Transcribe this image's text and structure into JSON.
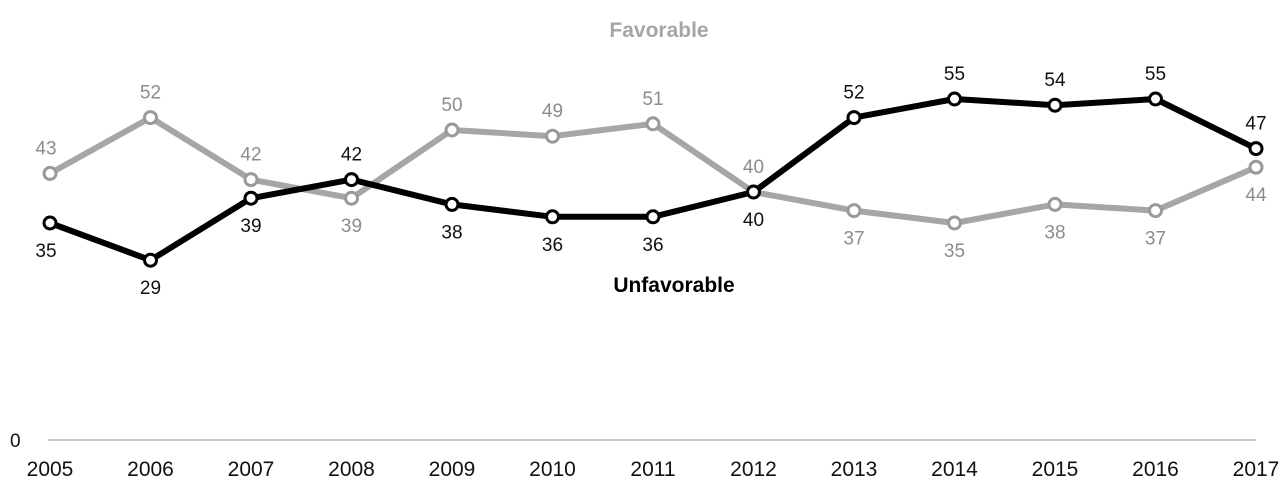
{
  "chart_data": {
    "type": "line",
    "title": "",
    "xlabel": "",
    "ylabel": "",
    "x": [
      "2005",
      "2006",
      "2007",
      "2008",
      "2009",
      "2010",
      "2011",
      "2012",
      "2013",
      "2014",
      "2015",
      "2016",
      "2017"
    ],
    "ylim": [
      0,
      60
    ],
    "y_ticks_shown": [
      "0"
    ],
    "grid": false,
    "legend": "inline labels",
    "series": [
      {
        "name": "Favorable",
        "color": "#a6a6a6",
        "values": [
          43,
          52,
          42,
          39,
          50,
          49,
          51,
          40,
          37,
          35,
          38,
          37,
          44
        ]
      },
      {
        "name": "Unfavorable",
        "color": "#000000",
        "values": [
          35,
          29,
          39,
          42,
          38,
          36,
          36,
          40,
          52,
          55,
          54,
          55,
          47
        ]
      }
    ]
  }
}
